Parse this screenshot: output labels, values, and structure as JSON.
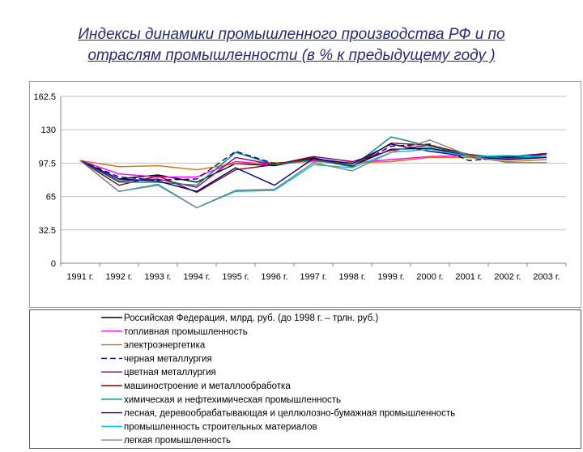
{
  "title": {
    "line1": "Индексы динамики промышленного производства РФ и по",
    "line2": "отраслям промышленности (в % к предыдущему году )"
  },
  "colors": {
    "title": "#2a2a6e",
    "grid": "#c0c0c0",
    "axis": "#808080"
  },
  "chart_data": {
    "type": "line",
    "title": "",
    "xlabel": "",
    "ylabel": "",
    "ylim": [
      0,
      162.5
    ],
    "yticks": [
      "0",
      "32.5",
      "65",
      "97.5",
      "130",
      "162.5"
    ],
    "grid": true,
    "legend_position": "bottom",
    "categories": [
      "1991 г.",
      "1992 г.",
      "1993 г.",
      "1994 г.",
      "1995 г.",
      "1996 г.",
      "1997 г.",
      "1998 г.",
      "1999 г.",
      "2000 г.",
      "2001 г.",
      "2002 г.",
      "2003 г."
    ],
    "series": [
      {
        "name": "Российская Федерация, млрд. руб. (до 1998 г. – трлн. руб.)",
        "color": "#000000",
        "dash": "",
        "values": [
          100,
          82,
          86,
          79,
          97,
          95,
          102,
          95,
          111,
          112,
          105,
          103,
          106
        ]
      },
      {
        "name": "топливная промышленность",
        "color": "#ff00ff",
        "dash": "",
        "values": [
          100,
          87,
          84,
          84,
          99,
          96,
          100,
          98,
          101,
          104,
          105,
          104,
          107
        ]
      },
      {
        "name": "электроэнергетика",
        "color": "#d97000",
        "dash": "",
        "values": [
          100,
          94,
          95,
          91,
          97,
          98,
          99,
          98,
          99,
          103,
          103,
          99,
          101
        ]
      },
      {
        "name": "черная металлургия",
        "color": "#000080",
        "dash": "7,4",
        "values": [
          100,
          84,
          81,
          82,
          109,
          97,
          101,
          94,
          114,
          116,
          100,
          103,
          107
        ]
      },
      {
        "name": "цветная металлургия",
        "color": "#800080",
        "dash": "",
        "values": [
          100,
          80,
          82,
          74,
          103,
          96,
          104,
          99,
          110,
          115,
          104,
          104,
          106
        ]
      },
      {
        "name": "машиностроение и металлообработка",
        "color": "#8b0000",
        "dash": "",
        "values": [
          100,
          76,
          85,
          69,
          91,
          96,
          103,
          94,
          117,
          115,
          106,
          102,
          107
        ]
      },
      {
        "name": "химическая и нефтехимическая промышленность",
        "color": "#008080",
        "dash": "",
        "values": [
          100,
          79,
          79,
          76,
          108,
          96,
          101,
          94,
          123,
          114,
          105,
          102,
          104
        ]
      },
      {
        "name": "лесная, деревообрабатывающая и целлюлозно-бумажная промышленность",
        "color": "#00008b",
        "dash": "",
        "values": [
          100,
          82,
          80,
          70,
          93,
          76,
          102,
          97,
          116,
          109,
          104,
          101,
          103
        ]
      },
      {
        "name": "промышленность строительных материалов",
        "color": "#00c0e0",
        "dash": "",
        "values": [
          100,
          70,
          76,
          54,
          70,
          71,
          96,
          93,
          108,
          111,
          104,
          105,
          104
        ]
      },
      {
        "name": "легкая промышленность",
        "color": "#808080",
        "dash": "",
        "values": [
          100,
          70,
          77,
          54,
          71,
          72,
          98,
          90,
          108,
          120,
          105,
          98,
          98
        ]
      }
    ]
  }
}
